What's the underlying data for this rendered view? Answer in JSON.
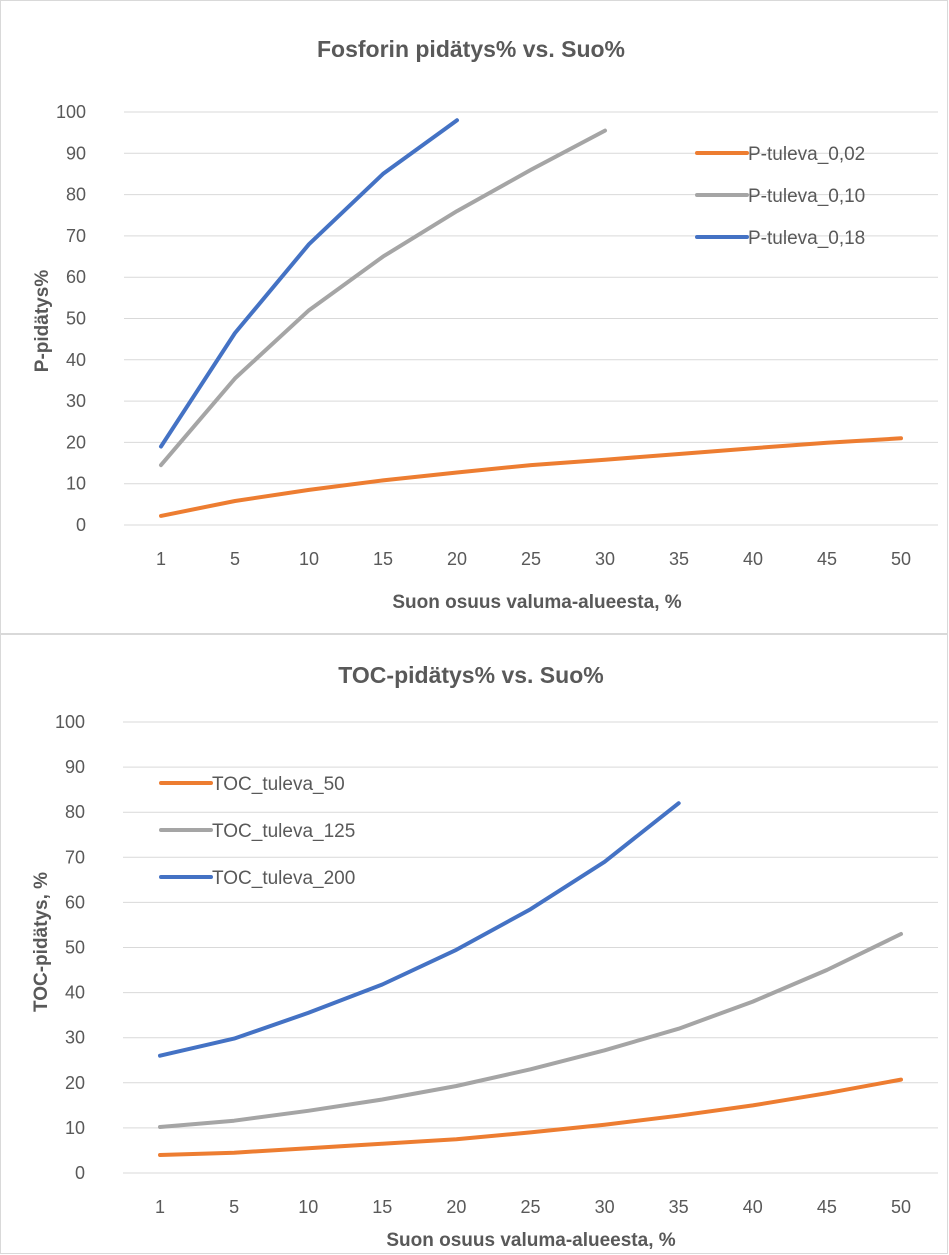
{
  "chart_data": [
    {
      "type": "line",
      "title": "Fosforin pidätys% vs. Suo%",
      "xlabel": "Suon osuus valuma-alueesta, %",
      "ylabel": "P-pidätys%",
      "ylim": [
        0,
        100
      ],
      "yticks": [
        "0",
        "10",
        "20",
        "30",
        "40",
        "50",
        "60",
        "70",
        "80",
        "90",
        "100"
      ],
      "categories": [
        "1",
        "5",
        "10",
        "15",
        "20",
        "25",
        "30",
        "35",
        "40",
        "45",
        "50"
      ],
      "grid": true,
      "legend_position": "top-right",
      "series": [
        {
          "name": "P-tuleva_0,02",
          "color": "#ED7D31",
          "values": [
            2.2,
            5.8,
            8.5,
            10.8,
            12.7,
            14.5,
            15.8,
            17.2,
            18.6,
            19.9,
            21.0
          ]
        },
        {
          "name": "P-tuleva_0,10",
          "color": "#A5A5A5",
          "values": [
            14.5,
            35.5,
            52,
            65,
            76,
            86,
            95.5,
            null,
            null,
            null,
            null
          ]
        },
        {
          "name": "P-tuleva_0,18",
          "color": "#4472C4",
          "values": [
            19,
            46.5,
            68,
            85,
            98,
            null,
            null,
            null,
            null,
            null,
            null
          ]
        }
      ]
    },
    {
      "type": "line",
      "title": "TOC-pidätys% vs. Suo%",
      "xlabel": "Suon osuus valuma-alueesta, %",
      "ylabel": "TOC-pidätys, %",
      "ylim": [
        0,
        100
      ],
      "yticks": [
        "0",
        "10",
        "20",
        "30",
        "40",
        "50",
        "60",
        "70",
        "80",
        "90",
        "100"
      ],
      "categories": [
        "1",
        "5",
        "10",
        "15",
        "20",
        "25",
        "30",
        "35",
        "40",
        "45",
        "50"
      ],
      "grid": true,
      "legend_position": "top-left",
      "series": [
        {
          "name": "TOC_tuleva_50",
          "color": "#ED7D31",
          "values": [
            4,
            4.5,
            5.5,
            6.5,
            7.5,
            9,
            10.7,
            12.7,
            15,
            17.7,
            20.7
          ]
        },
        {
          "name": "TOC_tuleva_125",
          "color": "#A5A5A5",
          "values": [
            10.2,
            11.6,
            13.8,
            16.3,
            19.3,
            23,
            27.2,
            32,
            38,
            45,
            53
          ]
        },
        {
          "name": "TOC_tuleva_200",
          "color": "#4472C4",
          "values": [
            26,
            29.8,
            35.5,
            41.8,
            49.5,
            58.5,
            69,
            82,
            null,
            null,
            null
          ]
        }
      ]
    }
  ]
}
